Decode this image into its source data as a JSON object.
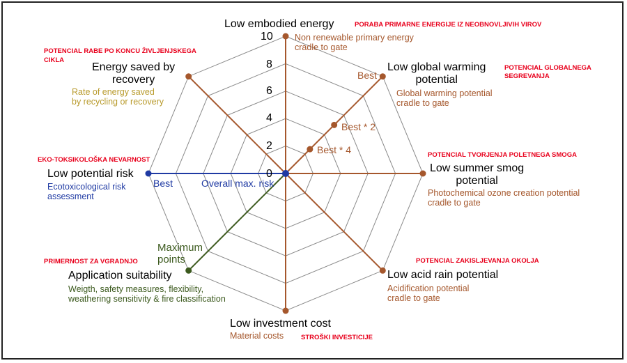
{
  "colors": {
    "brown": "#a5572c",
    "blue": "#1f3aa3",
    "green": "#3c5a1e",
    "gold": "#b89a2b",
    "red": "#e8001c",
    "grid": "#8a8a8a"
  },
  "scale": {
    "min": 0,
    "max": 10,
    "ticks": [
      "0",
      "2",
      "4",
      "6",
      "8",
      "10"
    ]
  },
  "axes": {
    "top": {
      "title": "Low embodied energy",
      "desc": [
        "Non renewable primary energy",
        "cradle to gate"
      ],
      "slovenian": "PORABA PRIMARNE ENERGIJE IZ NEOBNOVLJIVIH VIROV",
      "value": 10
    },
    "top_right": {
      "title": [
        "Low global warming",
        "potential"
      ],
      "desc": [
        "Global warming potential",
        "cradle to gate"
      ],
      "slovenian": [
        "POTENCIAL GLOBALNEGA",
        "SEGREVANJA"
      ],
      "value": 10
    },
    "right": {
      "title": [
        "Low summer smog",
        "potential"
      ],
      "desc": [
        "Photochemical ozone creation potential",
        "cradle to gate"
      ],
      "slovenian": "POTENCIAL TVORJENJA POLETNEGA SMOGA",
      "value": 10
    },
    "bottom_right": {
      "title": "Low acid rain potential",
      "desc": [
        "Acidification potential",
        "cradle to gate"
      ],
      "slovenian": "POTENCIAL ZAKISLJEVANJA OKOLJA",
      "value": 10
    },
    "bottom": {
      "title": "Low investment cost",
      "desc": "Material costs",
      "slovenian": "STROŠKI INVESTICIJE",
      "value": 10
    },
    "bottom_left": {
      "title": "Application suitability",
      "desc": [
        "Weigth, safety measures, flexibility,",
        "weathering sensitivity & fire classification"
      ],
      "slovenian": "PRIMERNOST ZA VGRADNJO",
      "annotation": [
        "Maximum",
        "points"
      ],
      "value": 10
    },
    "left": {
      "title": "Low potential risk",
      "desc": [
        "Ecotoxicological risk",
        "assessment"
      ],
      "slovenian": "EKO-TOKSIKOLOŠKA NEVARNOST",
      "best_label": "Best",
      "overall_label": "Overall max. risk",
      "value": 10
    },
    "top_left": {
      "title": [
        "Energy saved by",
        "recovery"
      ],
      "desc": [
        "Rate of energy saved",
        "by recycling or recovery"
      ],
      "slovenian": [
        "POTENCIAL RABE PO KONCU ŽIVLJENJSKEGA",
        "CIKLA"
      ],
      "value": 10
    }
  },
  "gwp_markers": [
    {
      "label": "Best",
      "value": 10
    },
    {
      "label": "Best * 2",
      "value": 5
    },
    {
      "label": "Best * 4",
      "value": 2.5
    }
  ]
}
